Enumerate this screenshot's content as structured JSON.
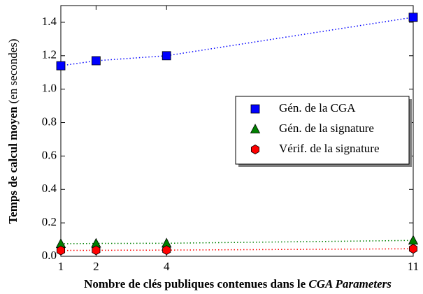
{
  "chart_data": {
    "type": "line",
    "xlabel": "Nombre de clés publiques contenues dans le",
    "xlabel_emphasis": "CGA Parameters",
    "ylabel": "Temps de calcul moyen",
    "ylabel_unit": "(en secondes)",
    "x": [
      1,
      2,
      4,
      11
    ],
    "xlim": [
      1,
      11
    ],
    "xticks": [
      1,
      2,
      4,
      11
    ],
    "ylim": [
      0,
      1.5
    ],
    "yticks": [
      {
        "value": 0,
        "label": "0.0"
      },
      {
        "value": 0.2,
        "label": "0.2"
      },
      {
        "value": 0.4,
        "label": "0.4"
      },
      {
        "value": 0.6,
        "label": "0.6"
      },
      {
        "value": 0.8,
        "label": "0.8"
      },
      {
        "value": 1.0,
        "label": "1.0"
      },
      {
        "value": 1.2,
        "label": "1.2"
      },
      {
        "value": 1.4,
        "label": "1.4"
      }
    ],
    "legend": "right",
    "series": [
      {
        "name": "Gén. de la CGA",
        "color": "#0000ff",
        "marker": "square",
        "values": [
          1.14,
          1.17,
          1.2,
          1.43
        ]
      },
      {
        "name": "Gén. de la signature",
        "color": "#008000",
        "marker": "triangle",
        "values": [
          0.075,
          0.077,
          0.078,
          0.095
        ]
      },
      {
        "name": "Vérif. de la signature",
        "color": "#ff0000",
        "marker": "hexagon",
        "values": [
          0.035,
          0.036,
          0.037,
          0.045
        ]
      }
    ]
  }
}
